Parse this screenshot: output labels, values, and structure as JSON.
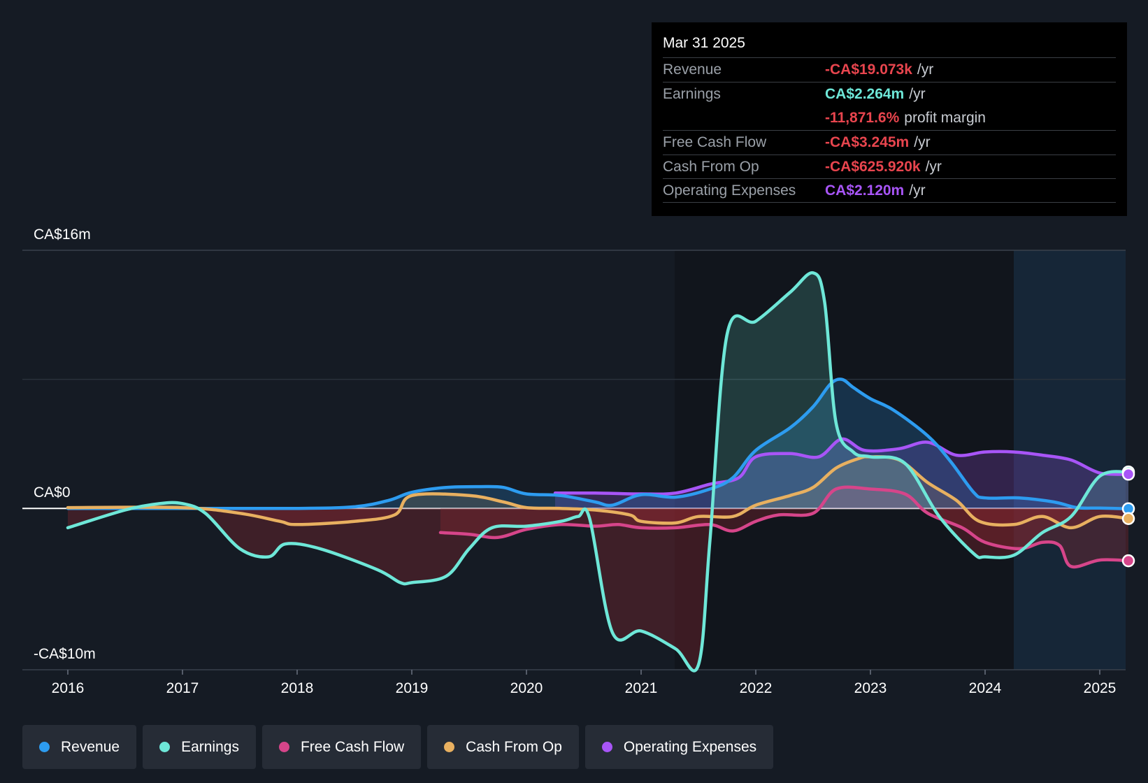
{
  "tooltip": {
    "date": "Mar 31 2025",
    "rows": [
      {
        "label": "Revenue",
        "value": "-CA$19.073k",
        "suffix": "/yr"
      },
      {
        "label": "Earnings",
        "value": "CA$2.264m",
        "suffix": "/yr"
      },
      {
        "label": "",
        "value": "-11,871.6%",
        "suffix": "profit margin"
      },
      {
        "label": "Free Cash Flow",
        "value": "-CA$3.245m",
        "suffix": "/yr"
      },
      {
        "label": "Cash From Op",
        "value": "-CA$625.920k",
        "suffix": "/yr"
      },
      {
        "label": "Operating Expenses",
        "value": "CA$2.120m",
        "suffix": "/yr"
      }
    ]
  },
  "legend": [
    {
      "label": "Revenue",
      "color": "#2d9cf0"
    },
    {
      "label": "Earnings",
      "color": "#6ee7d8"
    },
    {
      "label": "Free Cash Flow",
      "color": "#d6458a"
    },
    {
      "label": "Cash From Op",
      "color": "#e8b060"
    },
    {
      "label": "Operating Expenses",
      "color": "#a855f7"
    }
  ],
  "chart_data": {
    "type": "line",
    "y_tick_labels": [
      "CA$16m",
      "CA$0",
      "-CA$10m"
    ],
    "ylim": [
      -10,
      16
    ],
    "y_unit": "CA$ millions",
    "x_tick_labels": [
      "2016",
      "2017",
      "2018",
      "2019",
      "2020",
      "2021",
      "2022",
      "2023",
      "2024",
      "2025"
    ],
    "xlim": [
      2016.0,
      2025.28
    ],
    "forecast_shading_start": 2024.25,
    "grid": true,
    "series": [
      {
        "name": "Revenue",
        "color": "#2d9cf0",
        "points": [
          [
            2016.0,
            0
          ],
          [
            2017.0,
            0
          ],
          [
            2018.0,
            0
          ],
          [
            2018.5,
            0.1
          ],
          [
            2018.8,
            0.5
          ],
          [
            2019.0,
            1.0
          ],
          [
            2019.3,
            1.3
          ],
          [
            2019.6,
            1.35
          ],
          [
            2019.8,
            1.3
          ],
          [
            2020.0,
            0.9
          ],
          [
            2020.3,
            0.8
          ],
          [
            2020.6,
            0.4
          ],
          [
            2020.75,
            0.2
          ],
          [
            2021.0,
            0.85
          ],
          [
            2021.3,
            0.7
          ],
          [
            2021.6,
            1.2
          ],
          [
            2021.8,
            1.9
          ],
          [
            2022.0,
            3.6
          ],
          [
            2022.3,
            5.0
          ],
          [
            2022.5,
            6.3
          ],
          [
            2022.65,
            7.7
          ],
          [
            2022.75,
            8.0
          ],
          [
            2022.85,
            7.5
          ],
          [
            2023.0,
            6.8
          ],
          [
            2023.2,
            6.1
          ],
          [
            2023.5,
            4.5
          ],
          [
            2023.7,
            2.9
          ],
          [
            2023.9,
            1.0
          ],
          [
            2024.0,
            0.65
          ],
          [
            2024.3,
            0.65
          ],
          [
            2024.6,
            0.4
          ],
          [
            2024.8,
            0.05
          ],
          [
            2025.0,
            0.02
          ],
          [
            2025.25,
            -0.02
          ]
        ]
      },
      {
        "name": "Earnings",
        "color": "#6ee7d8",
        "points": [
          [
            2016.0,
            -1.2
          ],
          [
            2016.5,
            -0.1
          ],
          [
            2016.8,
            0.3
          ],
          [
            2017.0,
            0.3
          ],
          [
            2017.2,
            -0.3
          ],
          [
            2017.5,
            -2.5
          ],
          [
            2017.75,
            -3.0
          ],
          [
            2017.9,
            -2.2
          ],
          [
            2018.2,
            -2.5
          ],
          [
            2018.7,
            -3.8
          ],
          [
            2018.9,
            -4.6
          ],
          [
            2019.0,
            -4.6
          ],
          [
            2019.3,
            -4.2
          ],
          [
            2019.5,
            -2.5
          ],
          [
            2019.7,
            -1.2
          ],
          [
            2020.0,
            -1.1
          ],
          [
            2020.3,
            -0.8
          ],
          [
            2020.45,
            -0.5
          ],
          [
            2020.55,
            -0.6
          ],
          [
            2020.75,
            -7.7
          ],
          [
            2021.0,
            -7.6
          ],
          [
            2021.3,
            -8.7
          ],
          [
            2021.5,
            -9.7
          ],
          [
            2021.6,
            -2.0
          ],
          [
            2021.75,
            10.8
          ],
          [
            2022.0,
            11.6
          ],
          [
            2022.3,
            13.4
          ],
          [
            2022.5,
            14.6
          ],
          [
            2022.6,
            12.8
          ],
          [
            2022.7,
            5.3
          ],
          [
            2022.85,
            3.5
          ],
          [
            2023.0,
            3.2
          ],
          [
            2023.3,
            2.8
          ],
          [
            2023.6,
            -0.5
          ],
          [
            2023.9,
            -2.8
          ],
          [
            2024.0,
            -3.0
          ],
          [
            2024.25,
            -2.9
          ],
          [
            2024.5,
            -1.5
          ],
          [
            2024.75,
            -0.5
          ],
          [
            2025.0,
            2.0
          ],
          [
            2025.25,
            2.26
          ]
        ]
      },
      {
        "name": "Free Cash Flow",
        "color": "#d6458a",
        "points": [
          [
            2019.25,
            -1.5
          ],
          [
            2019.5,
            -1.6
          ],
          [
            2019.75,
            -1.8
          ],
          [
            2020.0,
            -1.3
          ],
          [
            2020.3,
            -1.0
          ],
          [
            2020.6,
            -1.1
          ],
          [
            2020.8,
            -1.0
          ],
          [
            2021.0,
            -1.2
          ],
          [
            2021.3,
            -1.2
          ],
          [
            2021.6,
            -1.0
          ],
          [
            2021.8,
            -1.4
          ],
          [
            2022.0,
            -0.8
          ],
          [
            2022.2,
            -0.4
          ],
          [
            2022.5,
            -0.3
          ],
          [
            2022.7,
            1.2
          ],
          [
            2023.0,
            1.2
          ],
          [
            2023.3,
            0.9
          ],
          [
            2023.5,
            -0.3
          ],
          [
            2023.8,
            -1.2
          ],
          [
            2024.0,
            -2.1
          ],
          [
            2024.3,
            -2.5
          ],
          [
            2024.5,
            -2.1
          ],
          [
            2024.65,
            -2.3
          ],
          [
            2024.75,
            -3.6
          ],
          [
            2025.0,
            -3.2
          ],
          [
            2025.25,
            -3.245
          ]
        ]
      },
      {
        "name": "Cash From Op",
        "color": "#e8b060",
        "points": [
          [
            2016.0,
            0.05
          ],
          [
            2017.0,
            0.05
          ],
          [
            2017.5,
            -0.3
          ],
          [
            2017.85,
            -0.8
          ],
          [
            2018.0,
            -1.0
          ],
          [
            2018.5,
            -0.8
          ],
          [
            2018.85,
            -0.4
          ],
          [
            2019.0,
            0.8
          ],
          [
            2019.5,
            0.8
          ],
          [
            2019.8,
            0.4
          ],
          [
            2020.0,
            0.05
          ],
          [
            2020.3,
            0.0
          ],
          [
            2020.6,
            -0.1
          ],
          [
            2020.9,
            -0.4
          ],
          [
            2021.0,
            -0.8
          ],
          [
            2021.3,
            -0.9
          ],
          [
            2021.5,
            -0.5
          ],
          [
            2021.8,
            -0.5
          ],
          [
            2022.0,
            0.2
          ],
          [
            2022.3,
            0.8
          ],
          [
            2022.5,
            1.3
          ],
          [
            2022.7,
            2.5
          ],
          [
            2022.9,
            3.1
          ],
          [
            2023.0,
            3.2
          ],
          [
            2023.25,
            3.0
          ],
          [
            2023.5,
            1.6
          ],
          [
            2023.75,
            0.5
          ],
          [
            2023.95,
            -0.8
          ],
          [
            2024.25,
            -1.0
          ],
          [
            2024.5,
            -0.5
          ],
          [
            2024.75,
            -1.2
          ],
          [
            2025.0,
            -0.5
          ],
          [
            2025.25,
            -0.63
          ]
        ]
      },
      {
        "name": "Operating Expenses",
        "color": "#a855f7",
        "points": [
          [
            2020.25,
            0.95
          ],
          [
            2020.6,
            0.95
          ],
          [
            2021.0,
            0.9
          ],
          [
            2021.3,
            0.95
          ],
          [
            2021.6,
            1.5
          ],
          [
            2021.85,
            1.9
          ],
          [
            2022.0,
            3.2
          ],
          [
            2022.3,
            3.4
          ],
          [
            2022.55,
            3.2
          ],
          [
            2022.75,
            4.3
          ],
          [
            2022.95,
            3.6
          ],
          [
            2023.25,
            3.7
          ],
          [
            2023.5,
            4.1
          ],
          [
            2023.75,
            3.3
          ],
          [
            2024.0,
            3.5
          ],
          [
            2024.25,
            3.5
          ],
          [
            2024.5,
            3.3
          ],
          [
            2024.75,
            3.0
          ],
          [
            2025.0,
            2.2
          ],
          [
            2025.25,
            2.12
          ]
        ]
      }
    ]
  }
}
